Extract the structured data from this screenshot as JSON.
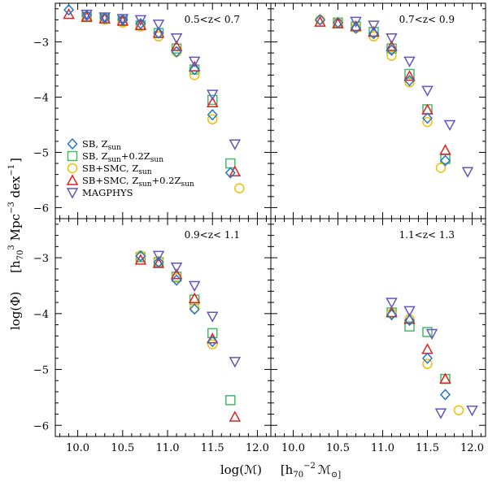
{
  "chart_data": {
    "type": "scatter",
    "xlabel_main": "log(ℳ)",
    "xlabel_unit_open": "[h",
    "xlabel_unit_sub": "70",
    "xlabel_unit_sup": "−2",
    "xlabel_unit_symbol": "ℳ",
    "xlabel_unit_close": "⊙]",
    "ylabel_main": "log(Φ)",
    "ylabel_unit_open": "[h",
    "ylabel_unit_sub": "70",
    "ylabel_unit_sup1": "3",
    "ylabel_unit_mid": " Mpc",
    "ylabel_unit_sup2": "−3",
    "ylabel_unit_dex": " dex",
    "ylabel_unit_sup3": "−1",
    "ylabel_unit_close": "]",
    "xlim": [
      9.75,
      12.15
    ],
    "ylim": [
      -6.2,
      -2.3
    ],
    "x_ticks": [
      10.0,
      10.5,
      11.0,
      11.5,
      12.0
    ],
    "x_tick_labels": [
      "10.0",
      "10.5",
      "11.0",
      "11.5",
      "12.0"
    ],
    "y_ticks": [
      -3,
      -4,
      -5,
      -6
    ],
    "y_tick_labels": [
      "−3",
      "−4",
      "−5",
      "−6"
    ],
    "legend": [
      {
        "key": "sb_zsun",
        "text": "SB,  Z",
        "sub": "sun",
        "extra": "",
        "extra_sub": "",
        "marker": "diamond",
        "color": "#2277cc"
      },
      {
        "key": "sb_zsun02",
        "text": "SB,  Z",
        "sub": "sun",
        "extra": "+0.2Z",
        "extra_sub": "sun",
        "marker": "square",
        "color": "#44bb66"
      },
      {
        "key": "sbsmc_zsun",
        "text": "SB+SMC,  Z",
        "sub": "sun",
        "extra": "",
        "extra_sub": "",
        "marker": "circle",
        "color": "#f0c000"
      },
      {
        "key": "sbsmc_zsun02",
        "text": "SB+SMC,  Z",
        "sub": "sun",
        "extra": "+0.2Z",
        "extra_sub": "sun",
        "marker": "triangle-up",
        "color": "#dd2222"
      },
      {
        "key": "magphys",
        "text": "MAGPHYS",
        "sub": "",
        "extra": "",
        "extra_sub": "",
        "marker": "triangle-down",
        "color": "#6655bb"
      }
    ],
    "panels": [
      {
        "label": "0.5<z< 0.7",
        "series": {
          "sb_zsun": {
            "x": [
              9.9,
              10.1,
              10.3,
              10.5,
              10.7,
              10.9,
              11.1,
              11.3,
              11.5,
              11.7
            ],
            "y": [
              -2.42,
              -2.52,
              -2.57,
              -2.6,
              -2.67,
              -2.84,
              -3.18,
              -3.5,
              -4.32,
              -5.37
            ]
          },
          "sb_zsun02": {
            "x": [
              10.1,
              10.3,
              10.5,
              10.7,
              10.9,
              11.1,
              11.3,
              11.5,
              11.7
            ],
            "y": [
              -2.55,
              -2.58,
              -2.62,
              -2.7,
              -2.84,
              -3.12,
              -3.5,
              -4.05,
              -5.2
            ]
          },
          "sbsmc_zsun": {
            "x": [
              10.1,
              10.3,
              10.5,
              10.7,
              10.9,
              11.1,
              11.3,
              11.5,
              11.8
            ],
            "y": [
              -2.55,
              -2.6,
              -2.65,
              -2.72,
              -2.9,
              -3.18,
              -3.6,
              -4.4,
              -5.65
            ]
          },
          "sbsmc_zsun02": {
            "x": [
              9.9,
              10.1,
              10.3,
              10.5,
              10.7,
              10.9,
              11.1,
              11.3,
              11.5,
              11.75
            ],
            "y": [
              -2.5,
              -2.55,
              -2.58,
              -2.62,
              -2.7,
              -2.84,
              -3.08,
              -3.45,
              -4.1,
              -5.35
            ]
          },
          "magphys": {
            "x": [
              10.1,
              10.3,
              10.5,
              10.7,
              10.9,
              11.1,
              11.3,
              11.5,
              11.75
            ],
            "y": [
              -2.5,
              -2.55,
              -2.58,
              -2.6,
              -2.68,
              -2.93,
              -3.35,
              -3.95,
              -4.85
            ]
          }
        }
      },
      {
        "label": "0.7<z< 0.9",
        "series": {
          "sb_zsun": {
            "x": [
              10.3,
              10.5,
              10.7,
              10.9,
              11.1,
              11.3,
              11.5,
              11.7
            ],
            "y": [
              -2.6,
              -2.65,
              -2.75,
              -2.85,
              -3.15,
              -3.7,
              -4.38,
              -5.15
            ]
          },
          "sb_zsun02": {
            "x": [
              10.5,
              10.7,
              10.9,
              11.1,
              11.3,
              11.5,
              11.7
            ],
            "y": [
              -2.65,
              -2.72,
              -2.82,
              -3.12,
              -3.58,
              -4.22,
              -5.12
            ]
          },
          "sbsmc_zsun": {
            "x": [
              10.3,
              10.5,
              10.7,
              10.9,
              11.1,
              11.3,
              11.5,
              11.65
            ],
            "y": [
              -2.6,
              -2.65,
              -2.75,
              -2.9,
              -3.25,
              -3.73,
              -4.45,
              -5.28
            ]
          },
          "sbsmc_zsun02": {
            "x": [
              10.3,
              10.5,
              10.7,
              10.9,
              11.1,
              11.3,
              11.5,
              11.7
            ],
            "y": [
              -2.64,
              -2.67,
              -2.72,
              -2.82,
              -3.08,
              -3.62,
              -4.23,
              -4.96
            ]
          },
          "magphys": {
            "x": [
              10.7,
              10.9,
              11.1,
              11.3,
              11.5,
              11.75,
              11.95
            ],
            "y": [
              -2.63,
              -2.7,
              -2.93,
              -3.35,
              -3.88,
              -4.5,
              -5.35
            ]
          }
        }
      },
      {
        "label": "0.9<z< 1.1",
        "series": {
          "sb_zsun": {
            "x": [
              10.7,
              10.9,
              11.1,
              11.3,
              11.5
            ],
            "y": [
              -2.97,
              -3.08,
              -3.4,
              -3.92,
              -4.5
            ]
          },
          "sb_zsun02": {
            "x": [
              10.7,
              10.9,
              11.1,
              11.3,
              11.5,
              11.7
            ],
            "y": [
              -2.99,
              -3.08,
              -3.34,
              -3.75,
              -4.35,
              -5.55
            ]
          },
          "sbsmc_zsun": {
            "x": [
              10.7,
              10.9,
              11.1,
              11.3,
              11.5
            ],
            "y": [
              -2.96,
              -3.06,
              -3.36,
              -3.9,
              -4.55
            ]
          },
          "sbsmc_zsun02": {
            "x": [
              10.7,
              10.9,
              11.1,
              11.3,
              11.5,
              11.75
            ],
            "y": [
              -3.04,
              -3.1,
              -3.3,
              -3.73,
              -4.45,
              -5.85
            ]
          },
          "magphys": {
            "x": [
              10.9,
              11.1,
              11.3,
              11.5,
              11.75
            ],
            "y": [
              -2.96,
              -3.17,
              -3.5,
              -4.05,
              -4.86
            ]
          }
        }
      },
      {
        "label": "1.1<z< 1.3",
        "series": {
          "sb_zsun": {
            "x": [
              11.1,
              11.3,
              11.5,
              11.7
            ],
            "y": [
              -4.02,
              -4.12,
              -4.8,
              -5.45
            ]
          },
          "sb_zsun02": {
            "x": [
              11.1,
              11.3,
              11.5,
              11.7
            ],
            "y": [
              -3.98,
              -4.23,
              -4.33,
              -5.17
            ]
          },
          "sbsmc_zsun": {
            "x": [
              11.1,
              11.3,
              11.5,
              11.85
            ],
            "y": [
              -4.0,
              -4.1,
              -4.9,
              -5.73
            ]
          },
          "sbsmc_zsun02": {
            "x": [
              11.1,
              11.3,
              11.5,
              11.7
            ],
            "y": [
              -3.98,
              -4.1,
              -4.64,
              -5.17
            ]
          },
          "magphys": {
            "x": [
              11.1,
              11.3,
              11.55,
              11.65,
              12.0
            ],
            "y": [
              -3.8,
              -3.95,
              -4.36,
              -5.78,
              -5.73
            ]
          }
        }
      }
    ]
  }
}
